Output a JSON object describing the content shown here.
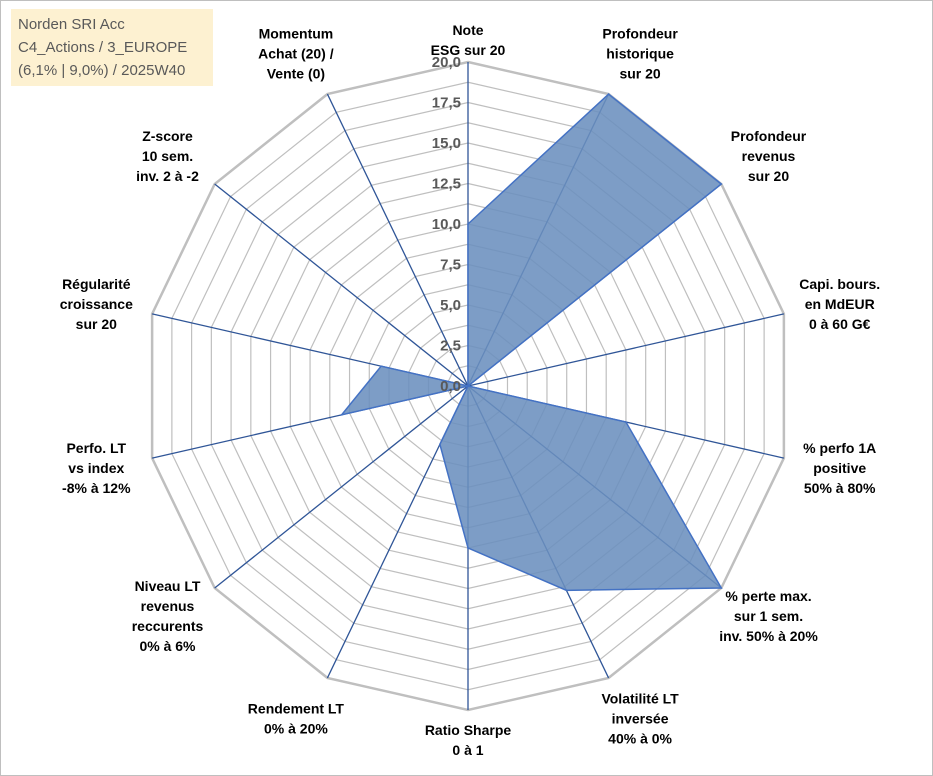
{
  "info_box": {
    "line1": "Norden SRI Acc",
    "line2": "C4_Actions / 3_EUROPE",
    "line3": "(6,1% | 9,0%) / 2025W40"
  },
  "chart_data": {
    "type": "radar",
    "title": "Norden SRI Acc",
    "rmax": 20,
    "tick_step": 2.5,
    "tick_labels": [
      "0,0",
      "2,5",
      "5,0",
      "7,5",
      "10,0",
      "12,5",
      "15,0",
      "17,5",
      "20,0"
    ],
    "gridline_step": 1.25,
    "axes": [
      {
        "lines": [
          "Note",
          "ESG sur 20"
        ],
        "value": 10.0
      },
      {
        "lines": [
          "Profondeur",
          "historique",
          "sur 20"
        ],
        "value": 20.0
      },
      {
        "lines": [
          "Profondeur",
          "revenus",
          "sur 20"
        ],
        "value": 20.0
      },
      {
        "lines": [
          "Capi. bours.",
          "en MdEUR",
          "0 à 60 G€"
        ],
        "value": 0.0
      },
      {
        "lines": [
          "% perfo 1A",
          "positive",
          "50% à 80%"
        ],
        "value": 10.0
      },
      {
        "lines": [
          "% perte max.",
          "sur 1 sem.",
          "inv. 50% à 20%"
        ],
        "value": 20.0
      },
      {
        "lines": [
          "Volatilité LT",
          "inversée",
          "40% à 0%"
        ],
        "value": 14.0
      },
      {
        "lines": [
          "Ratio Sharpe",
          "0 à 1"
        ],
        "value": 10.0
      },
      {
        "lines": [
          "Rendement LT",
          "0% à 20%"
        ],
        "value": 4.0
      },
      {
        "lines": [
          "Niveau LT",
          "revenus",
          "reccurents",
          "0% à 6%"
        ],
        "value": 0.0
      },
      {
        "lines": [
          "Perfo. LT",
          "vs index",
          "-8% à 12%"
        ],
        "value": 8.0
      },
      {
        "lines": [
          "Régularité",
          "croissance",
          "sur 20"
        ],
        "value": 5.5
      },
      {
        "lines": [
          "Z-score",
          "10 sem.",
          "inv. 2 à -2"
        ],
        "value": 0.0
      },
      {
        "lines": [
          "Momentum",
          "Achat (20) /",
          "Vente (0)"
        ],
        "value": 0.0
      }
    ],
    "series": [
      {
        "name": "Norden SRI Acc"
      }
    ],
    "colors": {
      "fill": "#6b8fbe",
      "fill_opacity": 0.88,
      "stroke": "#4472c4",
      "axis": "#2f5597",
      "grid": "#bfbfbf",
      "text": "#000000",
      "tick_text": "#595959"
    }
  }
}
